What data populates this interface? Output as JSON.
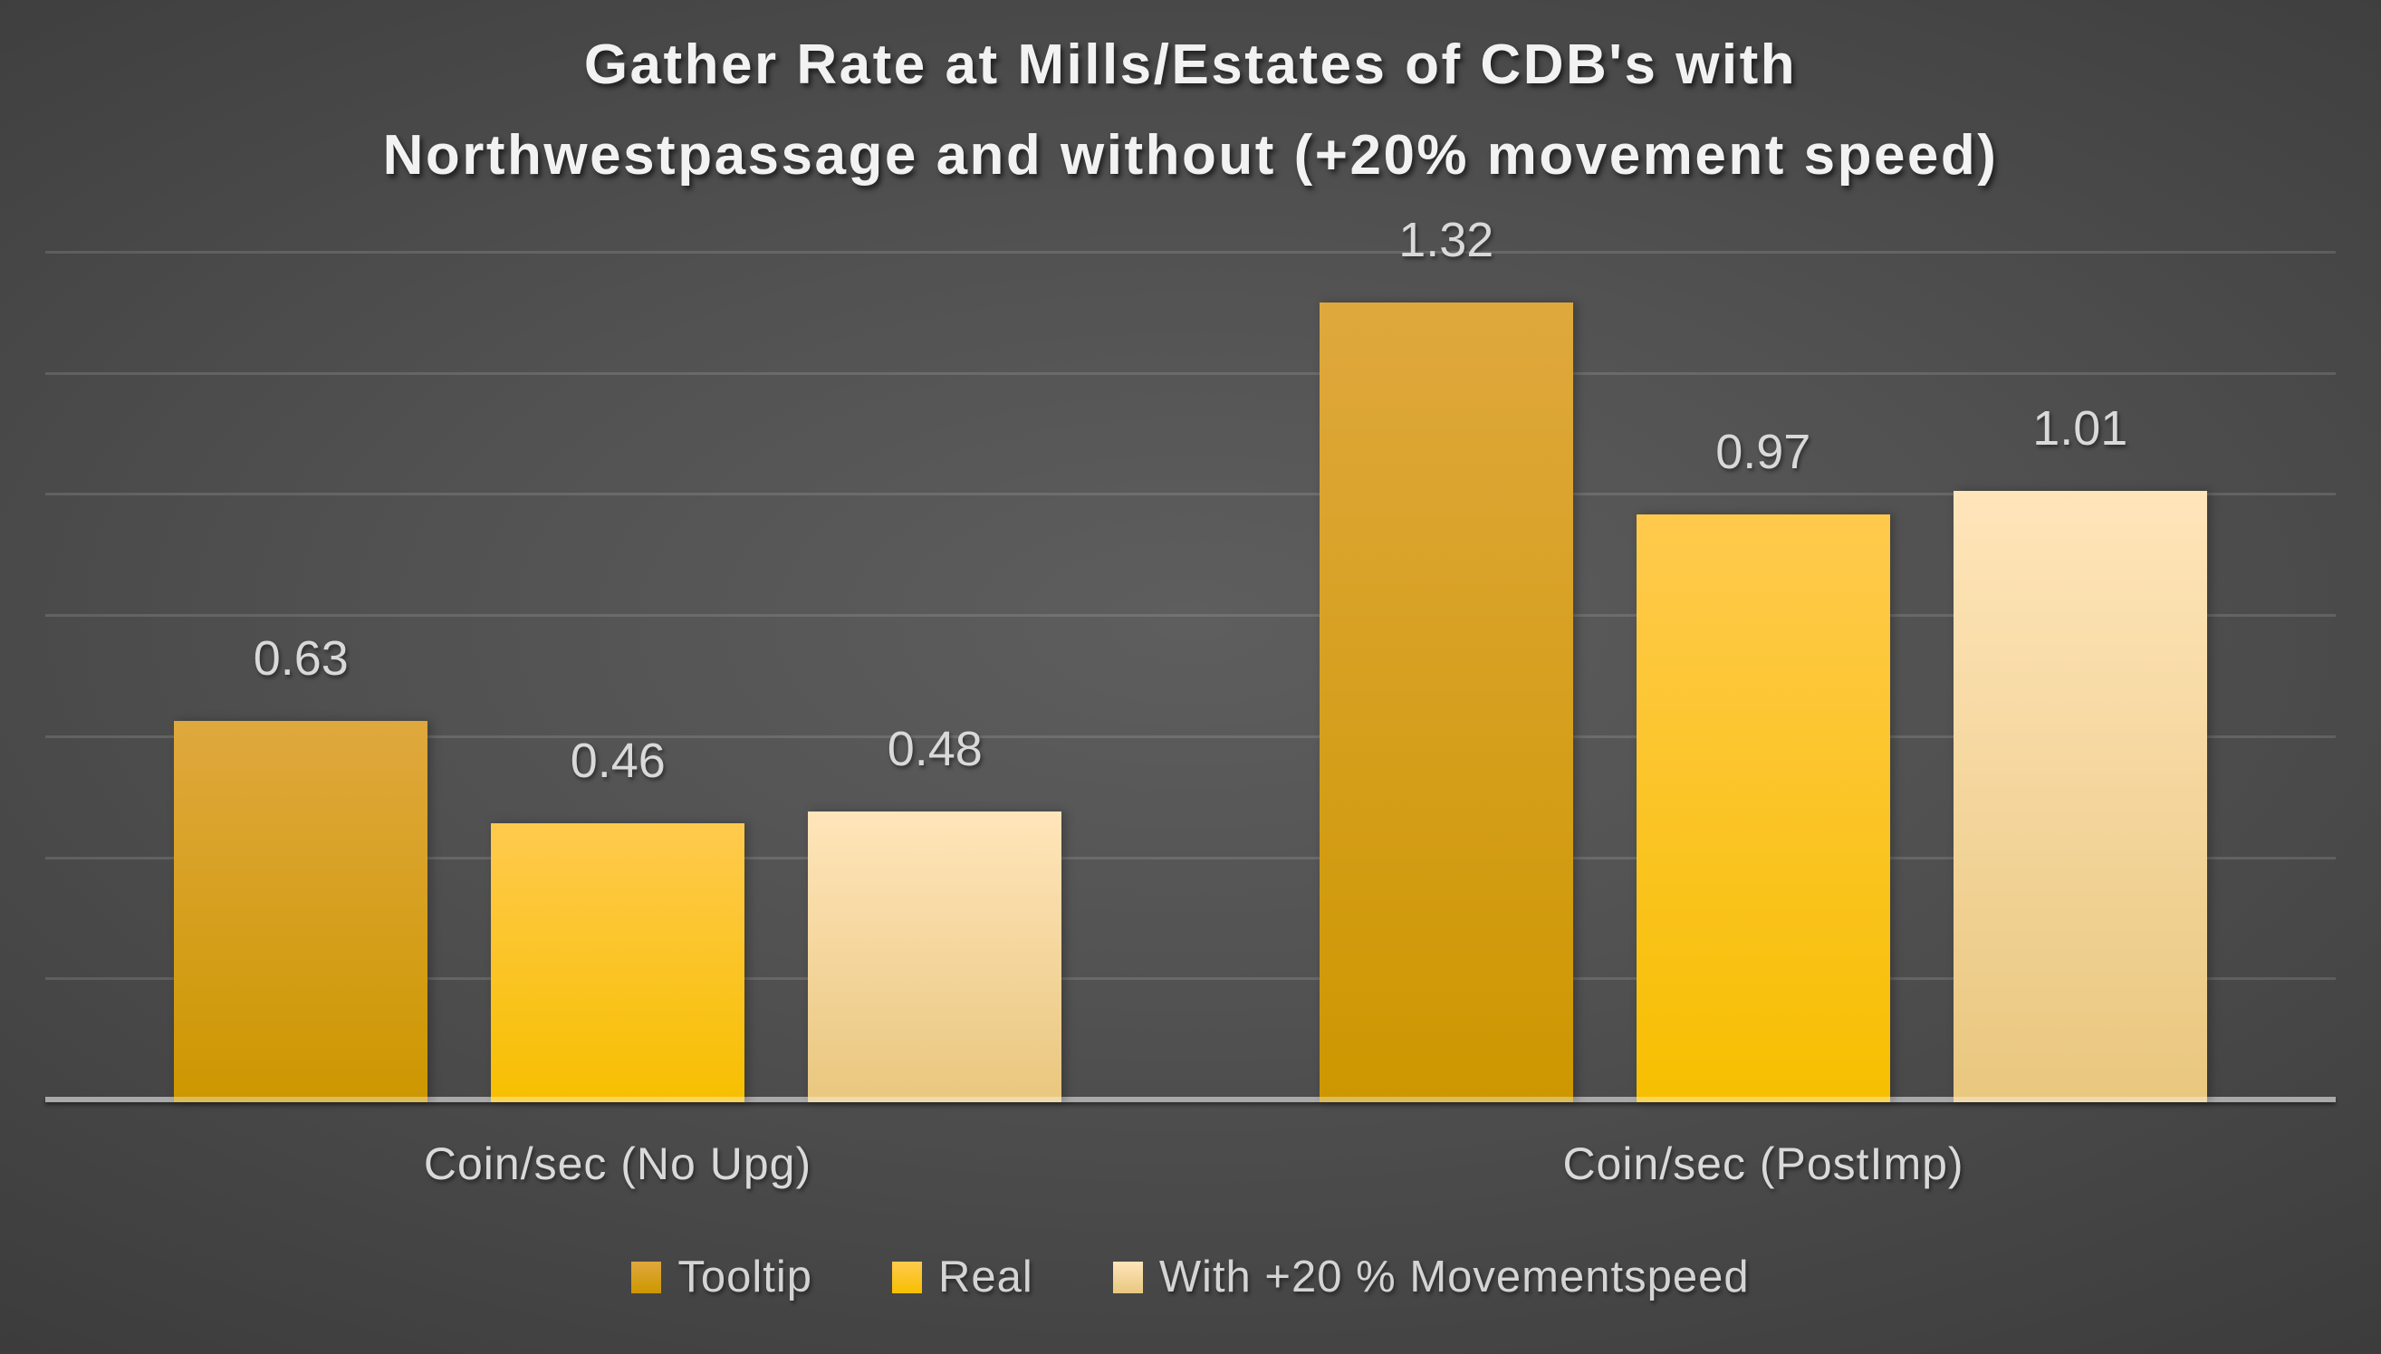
{
  "title": {
    "line1": "Gather Rate at Mills/Estates of CDB's with",
    "line2": "Northwestpassage and without (+20% movement speed)"
  },
  "chart_data": {
    "type": "bar",
    "title": "Gather Rate at Mills/Estates of CDB's with Northwestpassage and without (+20% movement speed)",
    "categories": [
      "Coin/sec (No Upg)",
      "Coin/sec (PostImp)"
    ],
    "series": [
      {
        "name": "Tooltip",
        "values": [
          0.63,
          1.32
        ],
        "color_top": "#dfa83d",
        "color_bottom": "#cd9700"
      },
      {
        "name": "Real",
        "values": [
          0.46,
          0.97
        ],
        "color_top": "#ffca4d",
        "color_bottom": "#f7bf00"
      },
      {
        "name": "With +20 % Movementspeed",
        "values": [
          0.48,
          1.01
        ],
        "color_top": "#ffe5ba",
        "color_bottom": "#e9c77f"
      }
    ],
    "data_labels": [
      [
        "0.63",
        "0.46",
        "0.48"
      ],
      [
        "1.32",
        "0.97",
        "1.01"
      ]
    ],
    "xlabel": "",
    "ylabel": "",
    "ylim": [
      0,
      1.4
    ],
    "gridline_step": 0.2,
    "grid": "horizontal",
    "y_tick_labels_visible": false,
    "legend_position": "bottom",
    "colors": {
      "axis_line": "#a9a9a9",
      "gridline": "rgba(255,255,255,0.13)",
      "title_text": "#f2f2f2",
      "label_text": "#d9d9d9",
      "legend_text": "#d4d4d4",
      "background_center": "#5e5e5e",
      "background_edge": "#262626"
    }
  }
}
